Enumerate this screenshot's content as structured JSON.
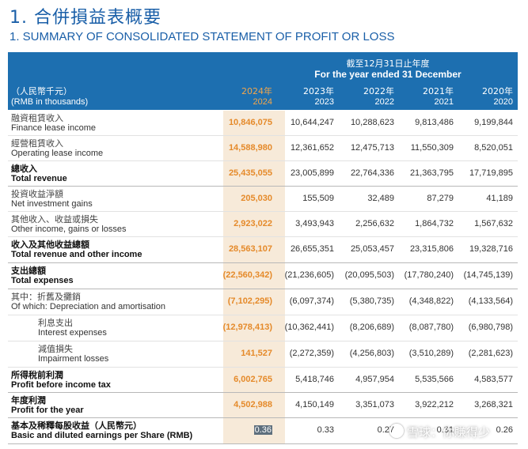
{
  "title_cn": "1. 合併損益表概要",
  "title_en": "1.  SUMMARY OF CONSOLIDATED STATEMENT OF PROFIT OR LOSS",
  "header": {
    "period_cn": "截至12月31日止年度",
    "period_en": "For the year ended 31 December",
    "unit_cn": "（人民幣千元）",
    "unit_en": "(RMB in thousands)",
    "years": [
      {
        "cn": "2024年",
        "en": "2024"
      },
      {
        "cn": "2023年",
        "en": "2023"
      },
      {
        "cn": "2022年",
        "en": "2022"
      },
      {
        "cn": "2021年",
        "en": "2021"
      },
      {
        "cn": "2020年",
        "en": "2020"
      }
    ]
  },
  "rows": [
    {
      "cn": "融資租賃收入",
      "en": "Finance lease income",
      "values": [
        "10,846,075",
        "10,644,247",
        "10,288,623",
        "9,813,486",
        "9,199,844"
      ]
    },
    {
      "cn": "經營租賃收入",
      "en": "Operating lease income",
      "values": [
        "14,588,980",
        "12,361,652",
        "12,475,713",
        "11,550,309",
        "8,520,051"
      ]
    },
    {
      "cn": "總收入",
      "en": "Total revenue",
      "values": [
        "25,435,055",
        "23,005,899",
        "22,764,336",
        "21,363,795",
        "17,719,895"
      ]
    },
    {
      "cn": "投資收益淨額",
      "en": "Net investment gains",
      "values": [
        "205,030",
        "155,509",
        "32,489",
        "87,279",
        "41,189"
      ]
    },
    {
      "cn": "其他收入、收益或損失",
      "en": "Other income, gains or losses",
      "values": [
        "2,923,022",
        "3,493,943",
        "2,256,632",
        "1,864,732",
        "1,567,632"
      ]
    },
    {
      "cn": "收入及其他收益總額",
      "en": "Total revenue and other income",
      "values": [
        "28,563,107",
        "26,655,351",
        "25,053,457",
        "23,315,806",
        "19,328,716"
      ]
    },
    {
      "cn": "支出總額",
      "en": "Total expenses",
      "values": [
        "(22,560,342)",
        "(21,236,605)",
        "(20,095,503)",
        "(17,780,240)",
        "(14,745,139)"
      ]
    },
    {
      "cn": "其中：折舊及攤銷",
      "en": "Of which: Depreciation and amortisation",
      "values": [
        "(7,102,295)",
        "(6,097,374)",
        "(5,380,735)",
        "(4,348,822)",
        "(4,133,564)"
      ]
    },
    {
      "cn": "利息支出",
      "en": "Interest expenses",
      "values": [
        "(12,978,413)",
        "(10,362,441)",
        "(8,206,689)",
        "(8,087,780)",
        "(6,980,798)"
      ]
    },
    {
      "cn": "減值損失",
      "en": "Impairment losses",
      "values": [
        "141,527",
        "(2,272,359)",
        "(4,256,803)",
        "(3,510,289)",
        "(2,281,623)"
      ]
    },
    {
      "cn": "所得稅前利潤",
      "en": "Profit before income tax",
      "values": [
        "6,002,765",
        "5,418,746",
        "4,957,954",
        "5,535,566",
        "4,583,577"
      ]
    },
    {
      "cn": "年度利潤",
      "en": "Profit for the year",
      "values": [
        "4,502,988",
        "4,150,149",
        "3,351,073",
        "3,922,212",
        "3,268,321"
      ]
    },
    {
      "cn": "基本及稀釋每股收益（人民幣元）",
      "en": "Basic and diluted earnings per Share (RMB)",
      "values": [
        "0.36",
        "0.33",
        "0.27",
        "0.31",
        "0.26"
      ]
    }
  ],
  "watermark": "雪球：你賺得少"
}
